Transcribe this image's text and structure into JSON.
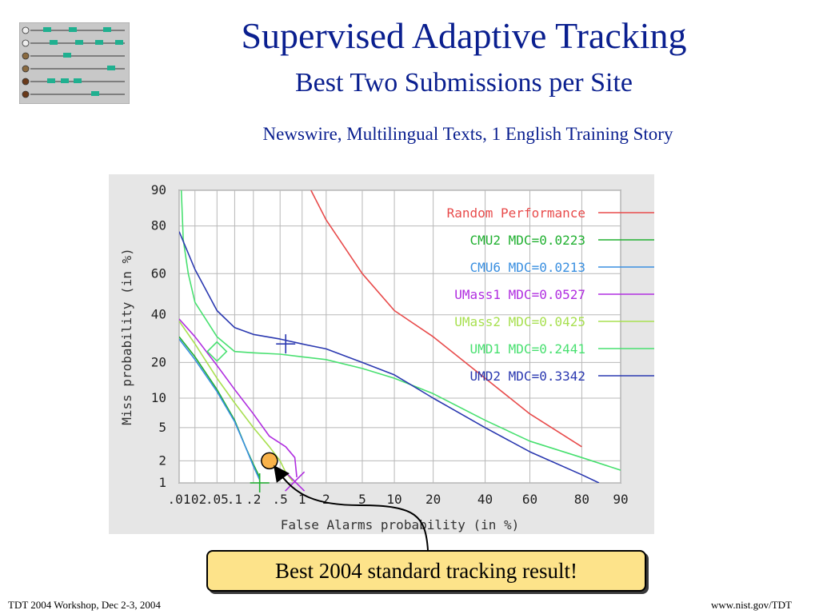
{
  "slide": {
    "title": "Supervised Adaptive Tracking",
    "subtitle": "Best Two Submissions per Site",
    "description": "Newswire, Multilingual Texts, 1 English Training Story",
    "callout": "Best 2004 standard tracking result!",
    "footer_left": "TDT 2004 Workshop, Dec 2-3, 2004",
    "footer_right": "www.nist.gov/TDT",
    "logo_icon": "timeline-tracking-logo-icon"
  },
  "chart_data": {
    "type": "line",
    "scale": "normal-deviate (DET)",
    "xlabel": "False Alarms probability (in %)",
    "ylabel": "Miss probability (in %)",
    "x_ticks": [
      {
        "label": ".01",
        "value": 0.01
      },
      {
        "label": ".02",
        "value": 0.02
      },
      {
        "label": ".05",
        "value": 0.05
      },
      {
        "label": ".1",
        "value": 0.1
      },
      {
        "label": ".2",
        "value": 0.2
      },
      {
        "label": ".5",
        "value": 0.5
      },
      {
        "label": "1",
        "value": 1
      },
      {
        "label": "2",
        "value": 2
      },
      {
        "label": "5",
        "value": 5
      },
      {
        "label": "10",
        "value": 10
      },
      {
        "label": "20",
        "value": 20
      },
      {
        "label": "40",
        "value": 40
      },
      {
        "label": "60",
        "value": 60
      },
      {
        "label": "80",
        "value": 80
      },
      {
        "label": "90",
        "value": 90
      }
    ],
    "y_ticks": [
      {
        "label": "1",
        "value": 1
      },
      {
        "label": "2",
        "value": 2
      },
      {
        "label": "5",
        "value": 5
      },
      {
        "label": "10",
        "value": 10
      },
      {
        "label": "20",
        "value": 20
      },
      {
        "label": "40",
        "value": 40
      },
      {
        "label": "60",
        "value": 60
      },
      {
        "label": "80",
        "value": 80
      },
      {
        "label": "90",
        "value": 90
      }
    ],
    "xlim": [
      0.01,
      90
    ],
    "ylim": [
      1,
      90
    ],
    "grid": true,
    "legend": "top-right",
    "series": [
      {
        "name": "Random Performance",
        "color": "#e84b4b",
        "points": [
          [
            1.3,
            90
          ],
          [
            2,
            82
          ],
          [
            5,
            60
          ],
          [
            10,
            42
          ],
          [
            20,
            30
          ],
          [
            40,
            15
          ],
          [
            60,
            7
          ],
          [
            80,
            3
          ]
        ]
      },
      {
        "name": "CMU2 MDC=0.0223",
        "color": "#20b030",
        "points": [
          [
            0.01,
            30
          ],
          [
            0.02,
            22
          ],
          [
            0.05,
            12
          ],
          [
            0.1,
            6
          ],
          [
            0.15,
            3
          ],
          [
            0.2,
            1.8
          ],
          [
            0.25,
            1.2
          ]
        ],
        "marker": {
          "shape": "plus",
          "x": 0.25,
          "y": 1
        }
      },
      {
        "name": "CMU6 MDC=0.0213",
        "color": "#3a8fe0",
        "points": [
          [
            0.01,
            29
          ],
          [
            0.02,
            21
          ],
          [
            0.05,
            11.5
          ],
          [
            0.1,
            5.8
          ],
          [
            0.15,
            3
          ],
          [
            0.2,
            1.7
          ],
          [
            0.25,
            1.1
          ]
        ]
      },
      {
        "name": "UMass1 MDC=0.0527",
        "color": "#b02ee0",
        "points": [
          [
            0.01,
            38
          ],
          [
            0.02,
            30
          ],
          [
            0.05,
            19
          ],
          [
            0.1,
            12
          ],
          [
            0.2,
            7
          ],
          [
            0.35,
            4
          ],
          [
            0.6,
            3
          ],
          [
            0.8,
            2.2
          ],
          [
            0.85,
            1.2
          ]
        ],
        "marker": {
          "shape": "cross",
          "x": 0.8,
          "y": 1.05
        }
      },
      {
        "name": "UMass2 MDC=0.0425",
        "color": "#a8e050",
        "points": [
          [
            0.01,
            37
          ],
          [
            0.02,
            27
          ],
          [
            0.05,
            15
          ],
          [
            0.1,
            9
          ],
          [
            0.2,
            5
          ],
          [
            0.35,
            3
          ],
          [
            0.5,
            2
          ],
          [
            0.6,
            1.4
          ],
          [
            0.75,
            1.05
          ]
        ]
      },
      {
        "name": "UMD1 MDC=0.2441",
        "color": "#48e070",
        "points": [
          [
            0.011,
            90
          ],
          [
            0.012,
            75
          ],
          [
            0.015,
            60
          ],
          [
            0.02,
            46
          ],
          [
            0.05,
            30
          ],
          [
            0.1,
            24
          ],
          [
            0.2,
            23.5
          ],
          [
            0.5,
            23
          ],
          [
            1,
            22
          ],
          [
            2,
            21
          ],
          [
            5,
            18
          ],
          [
            10,
            15
          ],
          [
            20,
            11
          ],
          [
            40,
            6
          ],
          [
            60,
            3.5
          ],
          [
            80,
            2.2
          ],
          [
            90,
            1.5
          ]
        ],
        "marker": {
          "shape": "diamond",
          "x": 0.05,
          "y": 24
        }
      },
      {
        "name": "UMD2 MDC=0.3342",
        "color": "#2a38b0",
        "points": [
          [
            0.01,
            78
          ],
          [
            0.02,
            62
          ],
          [
            0.05,
            42
          ],
          [
            0.1,
            34
          ],
          [
            0.2,
            31
          ],
          [
            0.5,
            29
          ],
          [
            1,
            27
          ],
          [
            2,
            25
          ],
          [
            5,
            20
          ],
          [
            10,
            16
          ],
          [
            20,
            10
          ],
          [
            40,
            5
          ],
          [
            60,
            2.6
          ],
          [
            80,
            1.3
          ],
          [
            85,
            1
          ]
        ],
        "marker": {
          "shape": "plus",
          "x": 0.6,
          "y": 27
        }
      }
    ],
    "highlight": {
      "x": 0.35,
      "y": 2
    }
  }
}
